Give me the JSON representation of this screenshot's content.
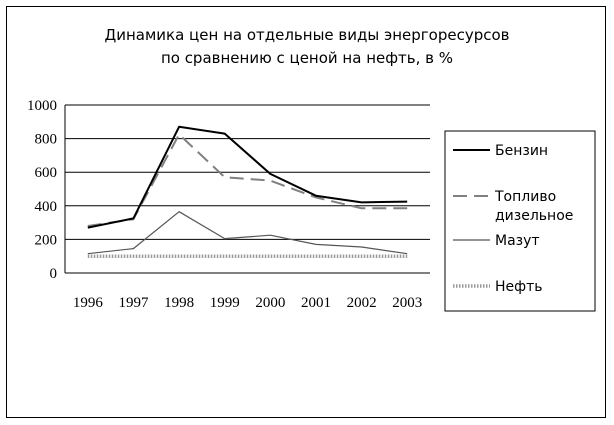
{
  "chart_data": {
    "type": "line",
    "title": [
      "Динамика цен на отдельные виды энергоресурсов",
      "по сравнению с ценой на нефть, в %"
    ],
    "x": [
      "1996",
      "1997",
      "1998",
      "1999",
      "2000",
      "2001",
      "2002",
      "2003"
    ],
    "ylim": [
      0,
      1000
    ],
    "yticks": [
      "0",
      "200",
      "400",
      "600",
      "800",
      "1000"
    ],
    "grid": true,
    "legend_position": "right",
    "series": [
      {
        "name": "Бензин",
        "name_lines": [
          "Бензин"
        ],
        "values": [
          270,
          325,
          870,
          830,
          590,
          460,
          420,
          425
        ],
        "color": "#000000",
        "style": "solid"
      },
      {
        "name": "Топливо дизельное",
        "name_lines": [
          "Топливо",
          "дизельное"
        ],
        "values": [
          280,
          320,
          825,
          570,
          550,
          450,
          385,
          385
        ],
        "color": "#808080",
        "style": "dashed"
      },
      {
        "name": "Мазут",
        "name_lines": [
          "Мазут"
        ],
        "values": [
          115,
          145,
          365,
          205,
          225,
          170,
          155,
          115
        ],
        "color": "#555555",
        "style": "solid-thin"
      },
      {
        "name": "Нефть",
        "name_lines": [
          "Нефть"
        ],
        "values": [
          100,
          100,
          100,
          100,
          100,
          100,
          100,
          100
        ],
        "color": "#999999",
        "style": "dotted-thick"
      }
    ]
  }
}
